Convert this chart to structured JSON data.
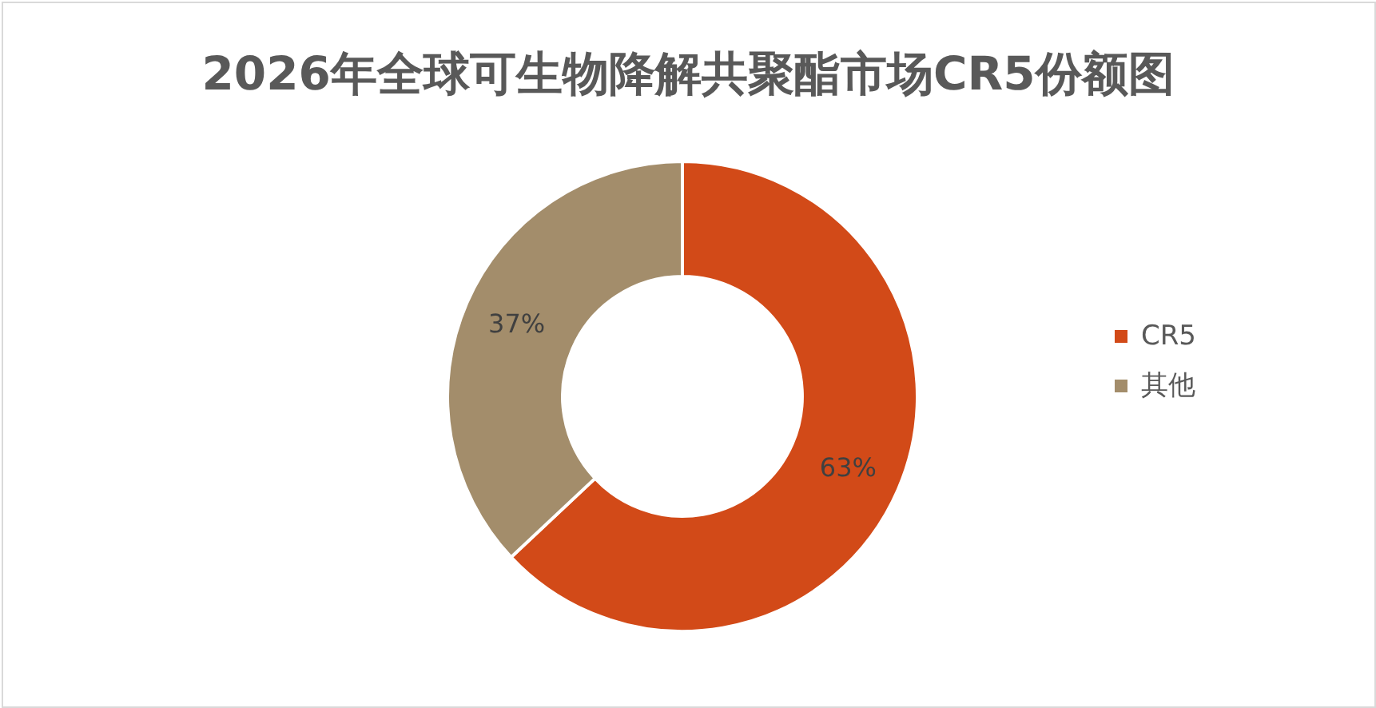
{
  "chart_data": {
    "type": "donut",
    "title": "2026年全球可生物降解共聚酯市场CR5份额图",
    "categories": [
      "CR5",
      "其他"
    ],
    "values": [
      63,
      37
    ],
    "colors": [
      "#d24a18",
      "#a38d6b"
    ],
    "value_labels": [
      "63%",
      "37%"
    ],
    "legend": "right"
  }
}
